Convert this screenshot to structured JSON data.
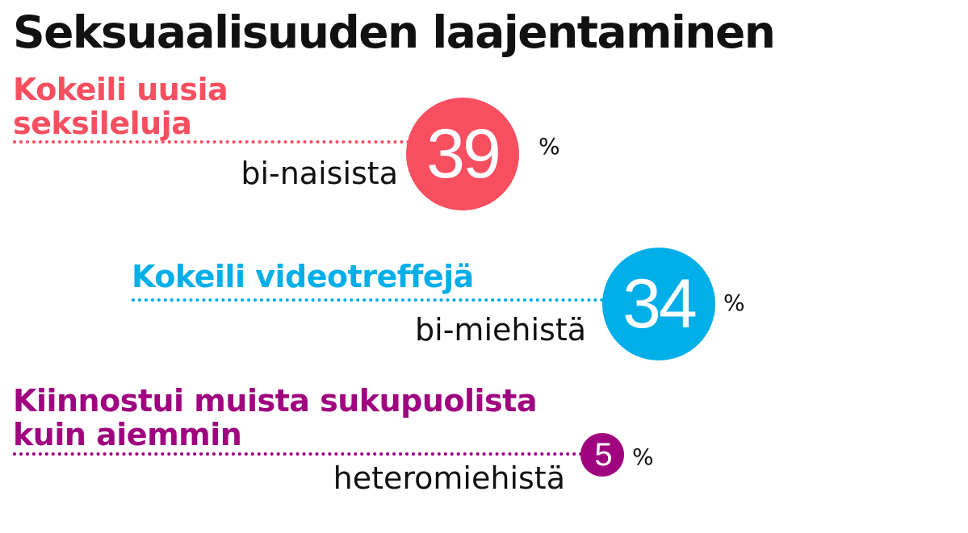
{
  "title": "Seksuaalisuuden laajentaminen",
  "chart_data": {
    "type": "bubble-stat",
    "unit": "%",
    "items": [
      {
        "label_lines": [
          "Kokeili uusia",
          "seksileluja"
        ],
        "group": "bi-naisista",
        "value": 39,
        "color": "#f74f60"
      },
      {
        "label_lines": [
          "Kokeili videotreffejä"
        ],
        "group": "bi-miehistä",
        "value": 34,
        "color": "#00aee8"
      },
      {
        "label_lines": [
          "Kiinnostui muista sukupuolista",
          "kuin aiemmin"
        ],
        "group": "heteromiehistä",
        "value": 5,
        "color": "#a0037f"
      }
    ]
  }
}
